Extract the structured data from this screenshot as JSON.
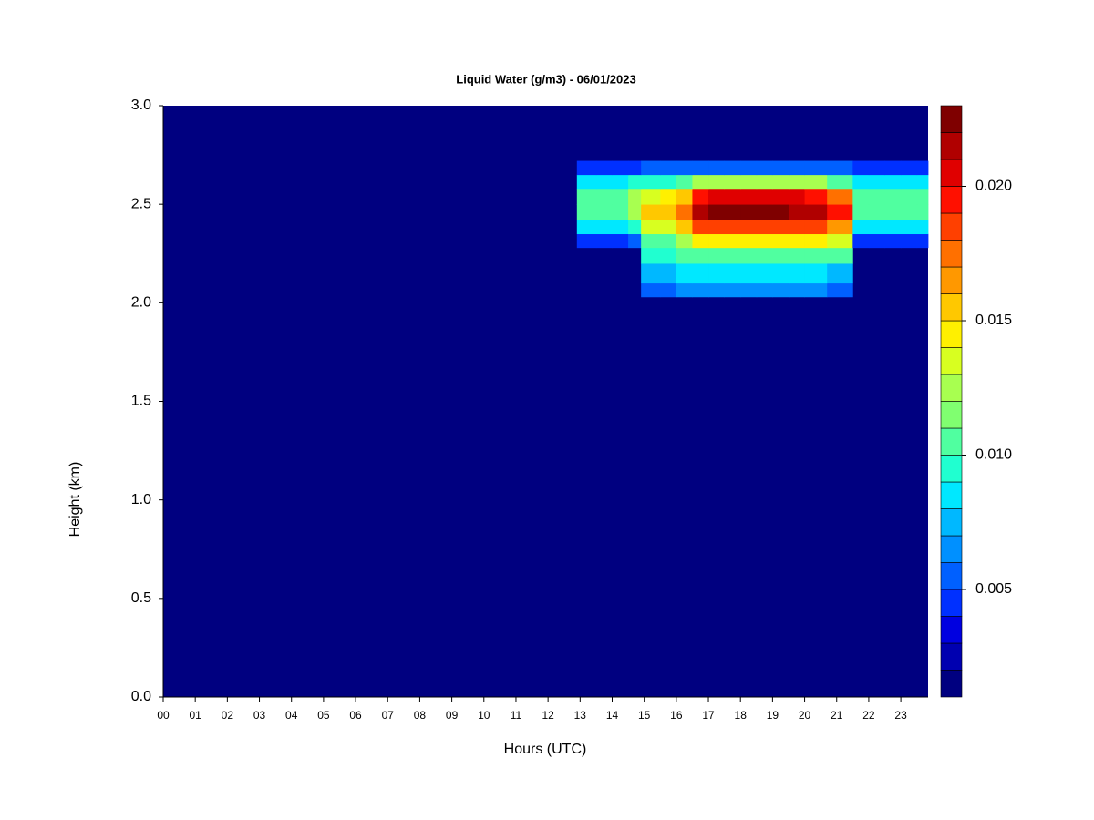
{
  "chart_data": {
    "type": "heatmap",
    "title": "Liquid Water (g/m3) - 06/01/2023",
    "x_label": "Hours (UTC)",
    "y_label": "Height (km)",
    "xlim": [
      0,
      23.85
    ],
    "ylim": [
      0,
      3
    ],
    "xticks": [
      {
        "value": 0,
        "label": "00"
      },
      {
        "value": 1,
        "label": "01"
      },
      {
        "value": 2,
        "label": "02"
      },
      {
        "value": 3,
        "label": "03"
      },
      {
        "value": 4,
        "label": "04"
      },
      {
        "value": 5,
        "label": "05"
      },
      {
        "value": 6,
        "label": "06"
      },
      {
        "value": 7,
        "label": "07"
      },
      {
        "value": 8,
        "label": "08"
      },
      {
        "value": 9,
        "label": "09"
      },
      10,
      11,
      12,
      13,
      14,
      15,
      16,
      17,
      18,
      19,
      20,
      21,
      22,
      23
    ],
    "yticks": [
      {
        "value": 0,
        "label": "0.0"
      },
      0.5,
      {
        "value": 1,
        "label": "1.0"
      },
      1.5,
      {
        "value": 2,
        "label": "2.0"
      },
      2.5,
      {
        "value": 3,
        "label": "3.0"
      }
    ],
    "zlim": [
      0.001,
      0.023
    ],
    "zticks": [
      0.005,
      {
        "value": 0.01,
        "label": "0.010"
      },
      0.015,
      {
        "value": 0.02,
        "label": "0.020"
      }
    ],
    "colors": [
      "#000080",
      "#0000B0",
      "#0000E0",
      "#0030FF",
      "#0060FF",
      "#0090FF",
      "#00B8FF",
      "#00E8FF",
      "#20FFD0",
      "#50FFA0",
      "#80FF70",
      "#A8FF50",
      "#D8FF20",
      "#FFF000",
      "#FFC800",
      "#FF9800",
      "#FF7000",
      "#FF4000",
      "#FF1000",
      "#E00000",
      "#B00000",
      "#7F0000"
    ],
    "x_edges": [
      12.9,
      13.5,
      14.0,
      14.5,
      14.9,
      15.5,
      16.0,
      16.5,
      17.0,
      17.5,
      18.0,
      18.5,
      19.0,
      19.5,
      20.0,
      20.7,
      21.5,
      22.0,
      22.5,
      23.0,
      23.5,
      23.85
    ],
    "y_edges": [
      2.03,
      2.1,
      2.2,
      2.28,
      2.35,
      2.42,
      2.5,
      2.58,
      2.65,
      2.72
    ],
    "z": [
      [
        null,
        null,
        null,
        null,
        0.005,
        0.005,
        0.006,
        0.006,
        0.006,
        0.006,
        0.006,
        0.006,
        0.006,
        0.006,
        0.006,
        0.005,
        null,
        null,
        null,
        null,
        null
      ],
      [
        null,
        null,
        null,
        null,
        0.007,
        0.007,
        0.008,
        0.008,
        0.008,
        0.008,
        0.008,
        0.008,
        0.008,
        0.008,
        0.008,
        0.007,
        null,
        null,
        null,
        null,
        null
      ],
      [
        null,
        null,
        null,
        null,
        0.009,
        0.009,
        0.01,
        0.011,
        0.011,
        0.011,
        0.011,
        0.011,
        0.011,
        0.011,
        0.011,
        0.01,
        null,
        null,
        null,
        null,
        null
      ],
      [
        0.004,
        0.004,
        0.004,
        0.005,
        0.011,
        0.011,
        0.012,
        0.014,
        0.014,
        0.014,
        0.014,
        0.014,
        0.014,
        0.014,
        0.014,
        0.013,
        0.004,
        0.004,
        0.004,
        0.004,
        0.004
      ],
      [
        0.008,
        0.008,
        0.008,
        0.009,
        0.013,
        0.013,
        0.015,
        0.018,
        0.018,
        0.018,
        0.018,
        0.018,
        0.018,
        0.018,
        0.018,
        0.016,
        0.008,
        0.008,
        0.008,
        0.008,
        0.008
      ],
      [
        0.011,
        0.011,
        0.011,
        0.012,
        0.015,
        0.015,
        0.017,
        0.021,
        0.022,
        0.022,
        0.022,
        0.022,
        0.022,
        0.021,
        0.021,
        0.019,
        0.011,
        0.01,
        0.01,
        0.01,
        0.01
      ],
      [
        0.011,
        0.011,
        0.011,
        0.012,
        0.013,
        0.014,
        0.015,
        0.019,
        0.02,
        0.02,
        0.02,
        0.02,
        0.02,
        0.02,
        0.019,
        0.017,
        0.011,
        0.01,
        0.01,
        0.01,
        0.01
      ],
      [
        0.008,
        0.008,
        0.008,
        0.009,
        0.009,
        0.009,
        0.01,
        0.012,
        0.012,
        0.012,
        0.012,
        0.012,
        0.012,
        0.012,
        0.012,
        0.011,
        0.008,
        0.008,
        0.008,
        0.008,
        0.008
      ],
      [
        0.004,
        0.004,
        0.004,
        0.004,
        0.005,
        0.005,
        0.005,
        0.005,
        0.005,
        0.005,
        0.005,
        0.005,
        0.005,
        0.005,
        0.005,
        0.005,
        0.004,
        0.004,
        0.004,
        0.004,
        0.004
      ]
    ]
  }
}
